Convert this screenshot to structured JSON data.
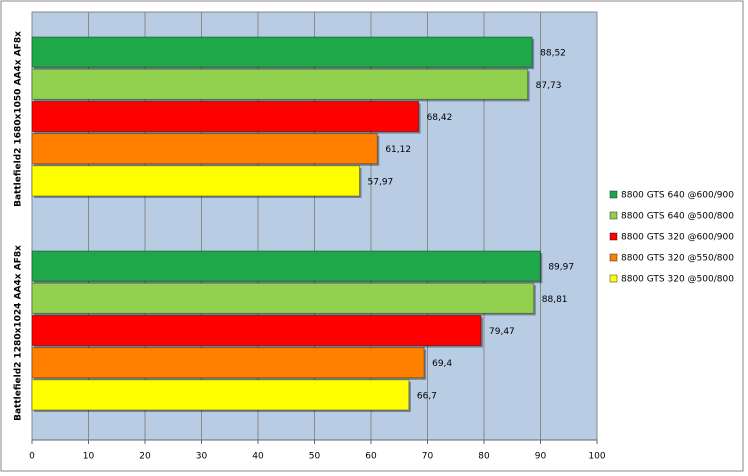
{
  "chart_data": {
    "type": "bar",
    "orientation": "horizontal",
    "categories": [
      "Battlefield2 1680x1050 AA4x AF8x",
      "Battlefield2 1280x1024 AA4x AF8x"
    ],
    "series": [
      {
        "name": "8800 GTS 640 @600/900",
        "color": "#1fa84a",
        "values": [
          88.52,
          89.97
        ],
        "value_labels": [
          "88,52",
          "89,97"
        ]
      },
      {
        "name": "8800 GTS 640 @500/800",
        "color": "#92d050",
        "values": [
          87.73,
          88.81
        ],
        "value_labels": [
          "87,73",
          "88,81"
        ]
      },
      {
        "name": "8800 GTS 320 @600/900",
        "color": "#ff0000",
        "values": [
          68.42,
          79.47
        ],
        "value_labels": [
          "68,42",
          "79,47"
        ]
      },
      {
        "name": "8800 GTS 320 @550/800",
        "color": "#ff8000",
        "values": [
          61.12,
          69.4
        ],
        "value_labels": [
          "61,12",
          "69,4"
        ]
      },
      {
        "name": "8800 GTS 320 @500/800",
        "color": "#ffff00",
        "values": [
          57.97,
          66.7
        ],
        "value_labels": [
          "57,97",
          "66,7"
        ]
      }
    ],
    "xlim": [
      0,
      100
    ],
    "xticks": [
      0,
      10,
      20,
      30,
      40,
      50,
      60,
      70,
      80,
      90,
      100
    ],
    "grid": true,
    "legend": "right"
  }
}
